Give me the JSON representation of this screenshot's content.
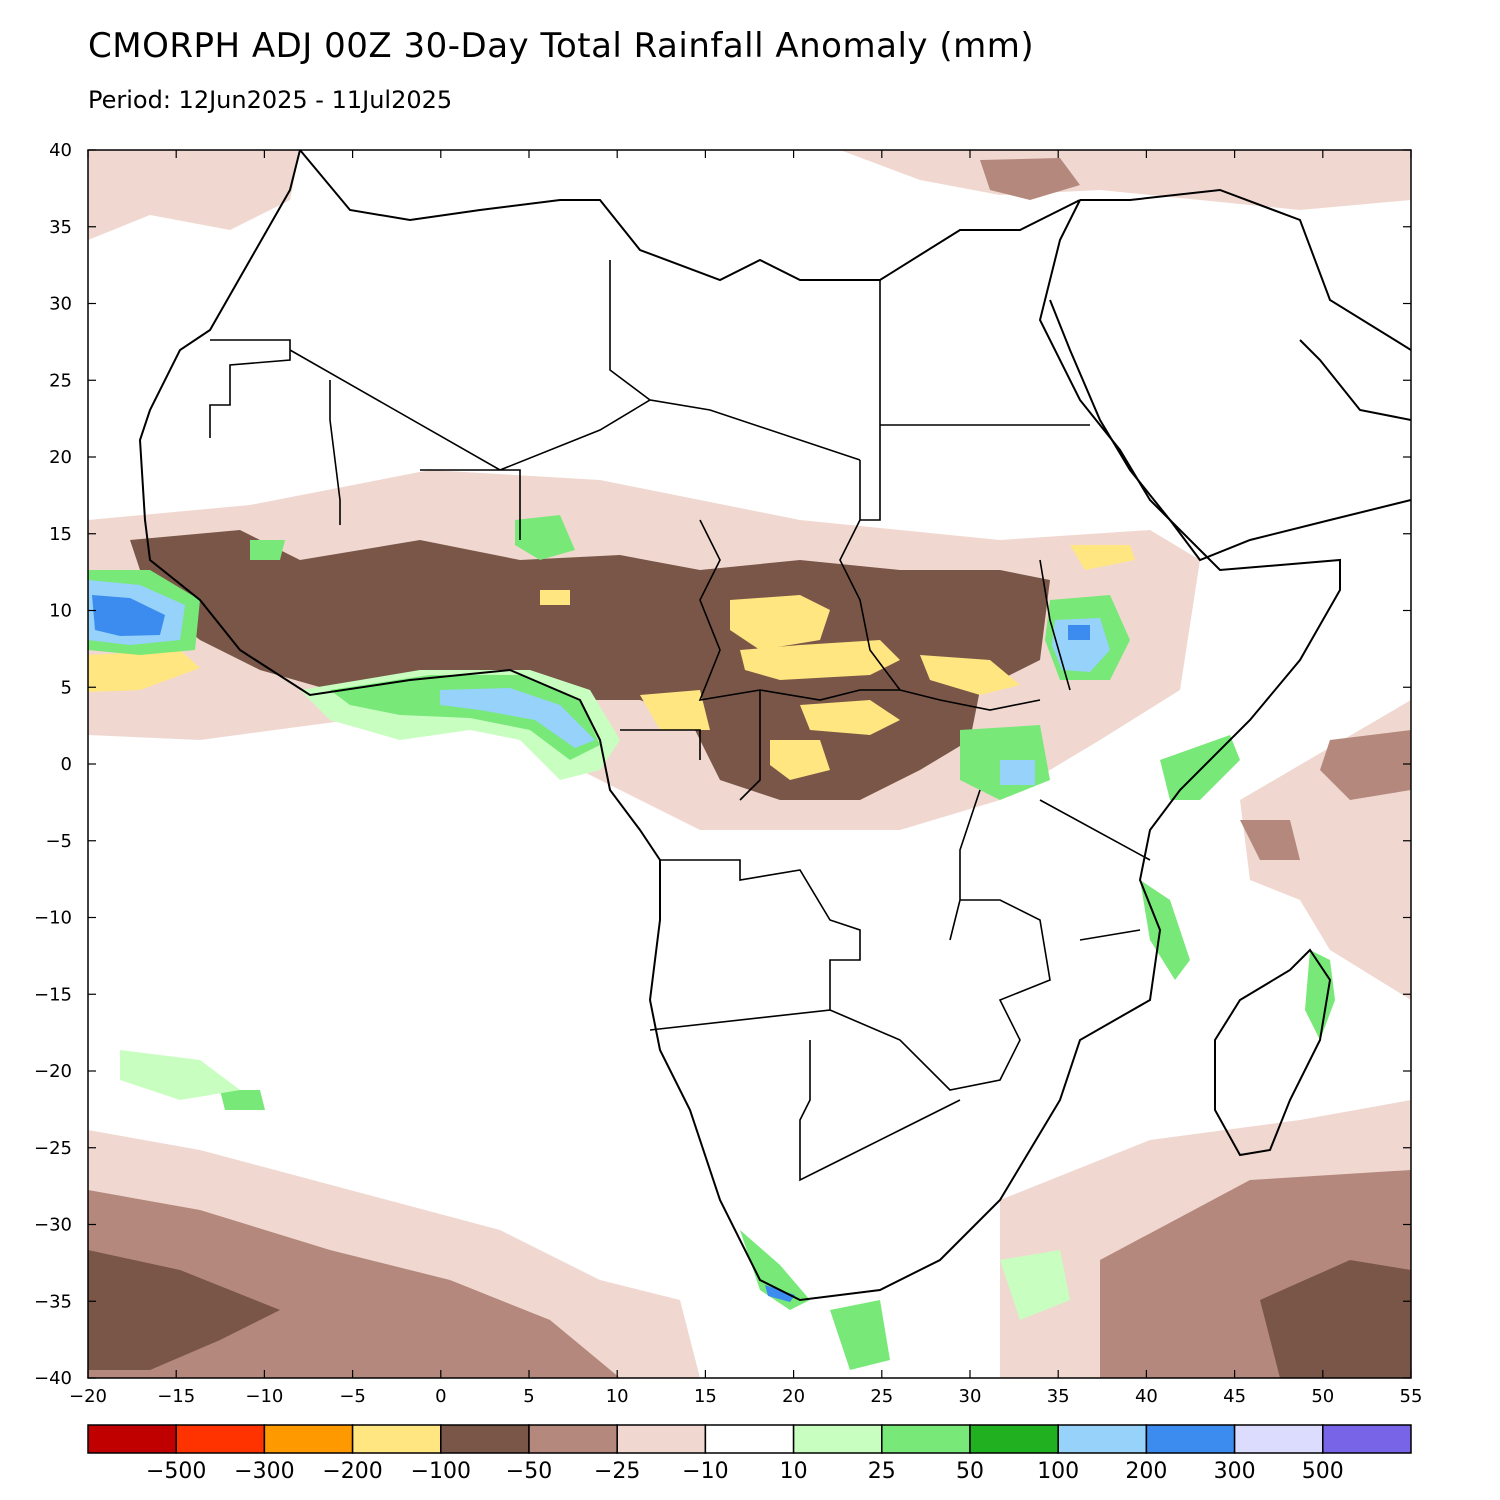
{
  "title": "CMORPH ADJ 00Z 30-Day Total Rainfall Anomaly (mm)",
  "period": "Period: 12Jun2025 - 11Jul2025",
  "map": {
    "lon_range": [
      -20,
      55
    ],
    "lat_range": [
      -40,
      40
    ],
    "lon_ticks": [
      -20,
      -15,
      -10,
      -5,
      0,
      5,
      10,
      15,
      20,
      25,
      30,
      35,
      40,
      45,
      50,
      55
    ],
    "lat_ticks": [
      40,
      35,
      30,
      25,
      20,
      15,
      10,
      5,
      0,
      -5,
      -10,
      -15,
      -20,
      -25,
      -30,
      -35,
      -40
    ],
    "lon_tick_labels": [
      "−20",
      "−15",
      "−10",
      "−5",
      "0",
      "5",
      "10",
      "15",
      "20",
      "25",
      "30",
      "35",
      "40",
      "45",
      "50",
      "55"
    ],
    "lat_tick_labels": [
      "40",
      "35",
      "30",
      "25",
      "20",
      "15",
      "10",
      "5",
      "0",
      "−5",
      "−10",
      "−15",
      "−20",
      "−25",
      "−30",
      "−35",
      "−40"
    ]
  },
  "colorbar": {
    "colors": [
      "#c00000",
      "#ff3300",
      "#ff9900",
      "#ffe680",
      "#7a5648",
      "#b4887c",
      "#f0d8d0",
      "#ffffff",
      "#c8ffc0",
      "#78e878",
      "#20b020",
      "#96d2fa",
      "#3c8cf0",
      "#dcdcff",
      "#7864e6"
    ],
    "labels": [
      "−500",
      "−300",
      "−200",
      "−100",
      "−50",
      "−25",
      "−10",
      "10",
      "25",
      "50",
      "100",
      "200",
      "300",
      "500"
    ]
  },
  "legend_colors": {
    "dry_strong": "#7a5648",
    "dry_moderate": "#b4887c",
    "dry_light": "#f0d8d0",
    "dry_severe": "#ffe680",
    "wet_light": "#c8ffc0",
    "wet_moderate": "#78e878",
    "wet_strong": "#20b020",
    "wet_severe": "#96d2fa",
    "wet_extreme": "#3c8cf0"
  }
}
